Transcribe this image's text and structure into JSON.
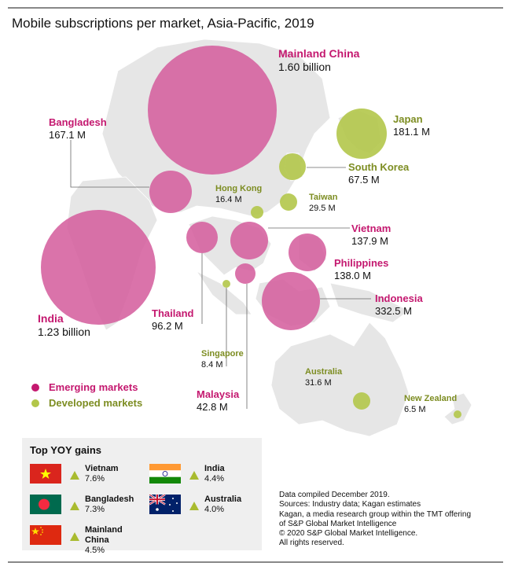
{
  "title": "Mobile subscriptions per market, Asia-Pacific, 2019",
  "colors": {
    "emerging": "#c4186f",
    "emerging_bubble": "#d45a9b",
    "developed": "#7d8d22",
    "developed_bubble": "#b2c64a",
    "land": "#e6e6e6"
  },
  "markets": [
    {
      "name": "Mainland China",
      "value": "1.60 billion",
      "type": "emerging"
    },
    {
      "name": "India",
      "value": "1.23 billion",
      "type": "emerging"
    },
    {
      "name": "Bangladesh",
      "value": "167.1 M",
      "type": "emerging"
    },
    {
      "name": "Japan",
      "value": "181.1 M",
      "type": "developed"
    },
    {
      "name": "South Korea",
      "value": "67.5 M",
      "type": "developed"
    },
    {
      "name": "Hong Kong",
      "value": "16.4 M",
      "type": "developed"
    },
    {
      "name": "Taiwan",
      "value": "29.5 M",
      "type": "developed"
    },
    {
      "name": "Vietnam",
      "value": "137.9 M",
      "type": "emerging"
    },
    {
      "name": "Philippines",
      "value": "138.0 M",
      "type": "emerging"
    },
    {
      "name": "Indonesia",
      "value": "332.5 M",
      "type": "emerging"
    },
    {
      "name": "Thailand",
      "value": "96.2 M",
      "type": "emerging"
    },
    {
      "name": "Singapore",
      "value": "8.4 M",
      "type": "developed"
    },
    {
      "name": "Malaysia",
      "value": "42.8 M",
      "type": "emerging"
    },
    {
      "name": "Australia",
      "value": "31.6 M",
      "type": "developed"
    },
    {
      "name": "New Zealand",
      "value": "6.5 M",
      "type": "developed"
    }
  ],
  "legend": {
    "emerging": "Emerging markets",
    "developed": "Developed markets"
  },
  "gains": {
    "title": "Top YOY gains",
    "items": [
      {
        "name": "Vietnam",
        "value": "7.6%",
        "flag": "vietnam-flag"
      },
      {
        "name": "Bangladesh",
        "value": "7.3%",
        "flag": "bangladesh-flag"
      },
      {
        "name": "Mainland China",
        "value": "4.5%",
        "flag": "china-flag"
      },
      {
        "name": "India",
        "value": "4.4%",
        "flag": "india-flag"
      },
      {
        "name": "Australia",
        "value": "4.0%",
        "flag": "australia-flag"
      }
    ]
  },
  "notes": [
    "Data compiled December 2019.",
    "Sources: Industry data; Kagan estimates",
    "Kagan, a media research group within the TMT offering",
    "of S&P Global Market Intelligence",
    "© 2020 S&P Global Market Intelligence.",
    "All rights reserved."
  ]
}
